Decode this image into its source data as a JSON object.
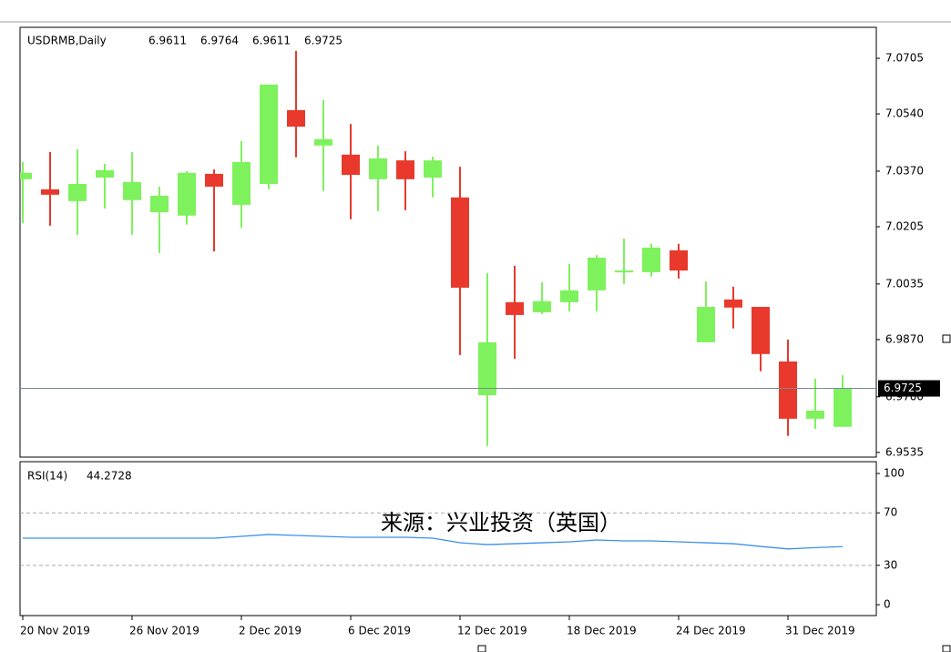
{
  "chart_data": [
    {
      "type": "candlestick",
      "title": "USDRMB,Daily",
      "categories": [
        "20 Nov 2019",
        null,
        null,
        null,
        "26 Nov 2019",
        null,
        null,
        null,
        "2 Dec 2019",
        null,
        null,
        null,
        "6 Dec 2019",
        null,
        null,
        null,
        "12 Dec 2019",
        null,
        null,
        null,
        "18 Dec 2019",
        null,
        null,
        null,
        "24 Dec 2019",
        null,
        null,
        null,
        "31 Dec 2019",
        null,
        null
      ],
      "open": [
        7.0346,
        7.0316,
        7.0281,
        7.0351,
        7.0284,
        7.0248,
        7.0238,
        7.0362,
        7.027,
        7.0332,
        7.0551,
        7.0446,
        7.0419,
        7.0346,
        7.0402,
        7.0351,
        7.0292,
        6.9705,
        6.9981,
        6.9951,
        6.9981,
        7.0016,
        7.007,
        7.007,
        7.0135,
        6.9862,
        6.9989,
        6.9967,
        6.9805,
        6.9635,
        6.9611
      ],
      "high": [
        7.0397,
        7.0427,
        7.0435,
        7.0392,
        7.0427,
        7.0324,
        7.037,
        7.0375,
        7.0459,
        7.0627,
        7.0727,
        7.0581,
        7.051,
        7.0446,
        7.0429,
        7.0413,
        7.0383,
        7.0067,
        7.0089,
        7.004,
        7.0094,
        7.0121,
        7.017,
        7.0154,
        7.0154,
        7.0043,
        7.0027,
        6.9967,
        6.987,
        6.9754,
        6.9764
      ],
      "low": [
        7.0216,
        7.0208,
        7.0181,
        7.0259,
        7.0181,
        7.0127,
        7.0211,
        7.0132,
        7.0202,
        7.0316,
        7.0411,
        7.0311,
        7.0227,
        7.0251,
        7.0254,
        7.0292,
        6.9824,
        6.9554,
        6.9813,
        6.9946,
        6.9954,
        6.9954,
        7.0035,
        7.0057,
        7.0051,
        6.9862,
        6.9903,
        6.9776,
        6.9584,
        6.9605,
        6.9611
      ],
      "close": [
        7.0365,
        7.03,
        7.0332,
        7.0373,
        7.0338,
        7.0297,
        7.0365,
        7.0324,
        7.0397,
        7.0627,
        7.0502,
        7.0465,
        7.0359,
        7.0408,
        7.0346,
        7.0402,
        7.0024,
        6.9862,
        6.9943,
        6.9984,
        7.0016,
        7.0113,
        7.0075,
        7.0143,
        7.0075,
        6.9967,
        6.9965,
        6.9827,
        6.9635,
        6.9659,
        6.9725
      ],
      "up_color": "#7ef25c",
      "down_color": "#e8392c",
      "ylim": [
        6.9521,
        7.0797
      ],
      "yticks": [
        7.0705,
        {
          "value": 7.054,
          "label": "7.0540"
        },
        {
          "value": 7.037,
          "label": "7.0370"
        },
        7.0205,
        7.0035,
        {
          "value": 6.987,
          "label": "6.9870"
        },
        {
          "value": 6.97,
          "label": "6.9700"
        },
        6.9535
      ],
      "last_price_line": true
    },
    {
      "type": "line",
      "title": "RSI(14)",
      "annotation": "来源：兴业投资（英国）",
      "values": [
        50.7,
        50.7,
        50.7,
        50.7,
        50.7,
        50.7,
        50.7,
        50.7,
        52.1,
        53.5,
        52.8,
        52.1,
        51.4,
        51.4,
        51.4,
        50.7,
        47.2,
        45.8,
        46.5,
        47.2,
        47.9,
        49.3,
        48.6,
        48.6,
        47.9,
        47.2,
        46.5,
        44.4,
        42.5,
        43.5,
        44.2728
      ],
      "color": "#3d8fe8",
      "ylim": [
        -8.3,
        109
      ],
      "yticks": [
        100,
        70,
        30,
        0
      ],
      "grid": true
    }
  ]
}
